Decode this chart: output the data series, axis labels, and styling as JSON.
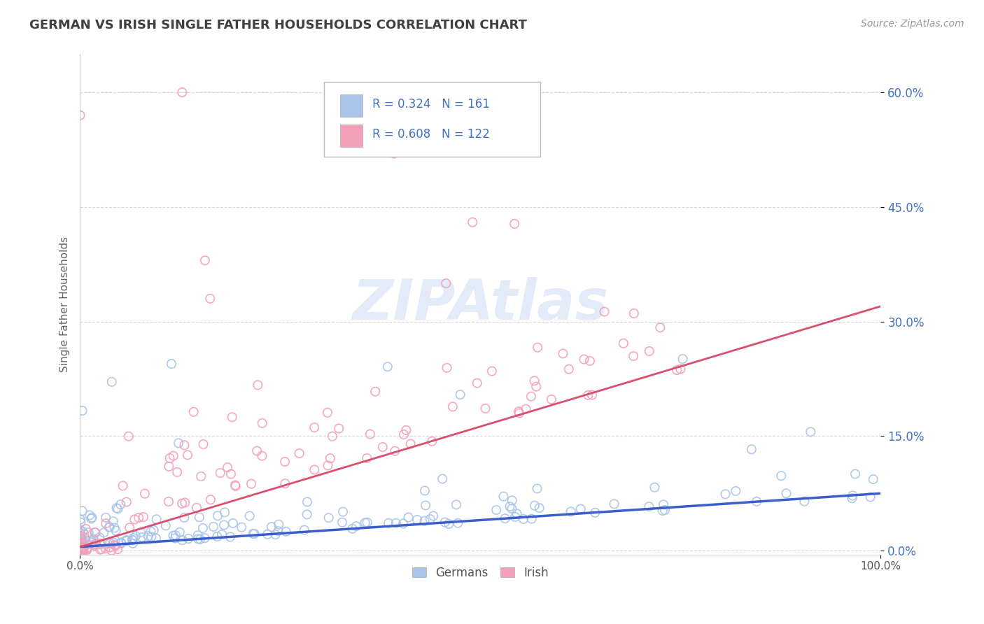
{
  "title": "GERMAN VS IRISH SINGLE FATHER HOUSEHOLDS CORRELATION CHART",
  "source": "Source: ZipAtlas.com",
  "ylabel": "Single Father Households",
  "xlim": [
    0.0,
    1.0
  ],
  "ylim": [
    -0.005,
    0.65
  ],
  "xticks": [
    0.0,
    1.0
  ],
  "xticklabels": [
    "0.0%",
    "100.0%"
  ],
  "yticks": [
    0.0,
    0.15,
    0.3,
    0.45,
    0.6
  ],
  "yticklabels": [
    "0.0%",
    "15.0%",
    "30.0%",
    "45.0%",
    "60.0%"
  ],
  "german_color": "#a8c4e8",
  "irish_color": "#f4a0b8",
  "german_line_color": "#3a5fcd",
  "irish_line_color": "#d94f6e",
  "german_R": 0.324,
  "german_N": 161,
  "irish_R": 0.608,
  "irish_N": 122,
  "background_color": "#ffffff",
  "grid_color": "#cccccc",
  "legend_text_color": "#4472c4",
  "title_color": "#404040",
  "axis_label_color": "#666666",
  "tick_label_color_x": "#555555",
  "tick_label_color_y": "#4472c4",
  "german_trend_start": 0.005,
  "german_trend_end": 0.075,
  "irish_trend_start": 0.005,
  "irish_trend_end": 0.32
}
